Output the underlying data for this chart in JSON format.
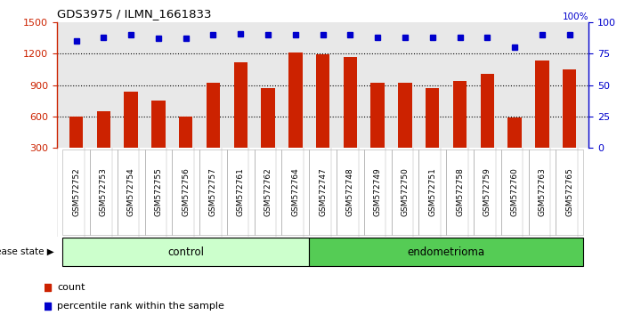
{
  "title": "GDS3975 / ILMN_1661833",
  "samples": [
    "GSM572752",
    "GSM572753",
    "GSM572754",
    "GSM572755",
    "GSM572756",
    "GSM572757",
    "GSM572761",
    "GSM572762",
    "GSM572764",
    "GSM572747",
    "GSM572748",
    "GSM572749",
    "GSM572750",
    "GSM572751",
    "GSM572758",
    "GSM572759",
    "GSM572760",
    "GSM572763",
    "GSM572765"
  ],
  "counts": [
    600,
    650,
    840,
    750,
    600,
    920,
    1120,
    870,
    1210,
    1190,
    1170,
    920,
    920,
    870,
    940,
    1010,
    590,
    1130,
    1050
  ],
  "percentile_ranks": [
    85,
    88,
    90,
    87,
    87,
    90,
    91,
    90,
    90,
    90,
    90,
    88,
    88,
    88,
    88,
    88,
    80,
    90,
    90
  ],
  "bar_color": "#cc2200",
  "dot_color": "#0000cc",
  "ylim_left": [
    300,
    1500
  ],
  "ylim_right": [
    0,
    100
  ],
  "yticks_left": [
    300,
    600,
    900,
    1200,
    1500
  ],
  "yticks_right": [
    0,
    25,
    50,
    75,
    100
  ],
  "grid_values": [
    600,
    900,
    1200
  ],
  "control_count": 9,
  "endometrioma_count": 10,
  "control_label": "control",
  "endometrioma_label": "endometrioma",
  "disease_state_label": "disease state",
  "legend_count_label": "count",
  "legend_pct_label": "percentile rank within the sample",
  "plot_bg_color": "#e8e8e8",
  "label_bg_color": "#d0d0d0",
  "control_box_color": "#ccffcc",
  "endometrioma_box_color": "#55cc55",
  "bar_width": 0.5,
  "fig_bg": "#ffffff"
}
